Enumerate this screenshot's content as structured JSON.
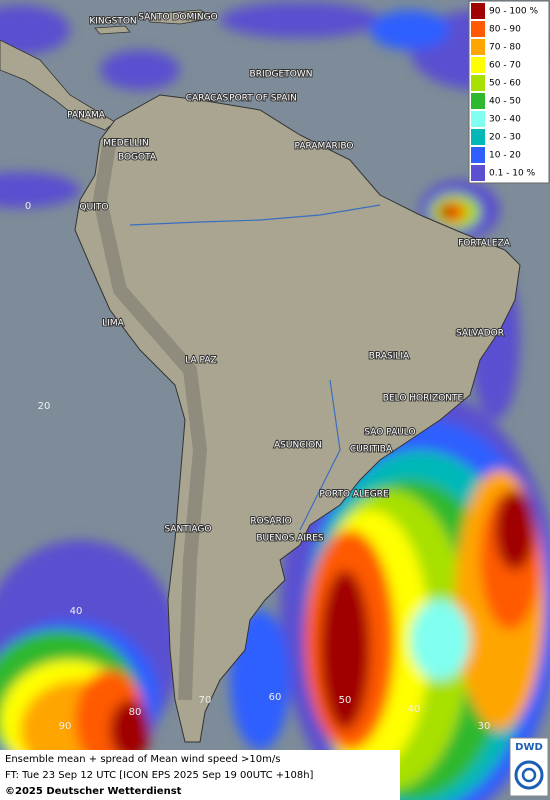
{
  "legend": [
    {
      "label": "90 - 100 %",
      "color": "#a00000"
    },
    {
      "label": "80 - 90",
      "color": "#ff5a00"
    },
    {
      "label": "70 - 80",
      "color": "#ffa500"
    },
    {
      "label": "60 - 70",
      "color": "#ffff00"
    },
    {
      "label": "50 - 60",
      "color": "#a8e000"
    },
    {
      "label": "40 - 50",
      "color": "#2fb82f"
    },
    {
      "label": "30 - 40",
      "color": "#80fff0"
    },
    {
      "label": "20 - 30",
      "color": "#00b8b8"
    },
    {
      "label": "10 - 20",
      "color": "#2f5fff"
    },
    {
      "label": "0.1 - 10 %",
      "color": "#5a50d0"
    }
  ],
  "cities": [
    "KINGSTON",
    "SANTO DOMINGO",
    "BRIDGETOWN",
    "CARACAS",
    "PORT OF SPAIN",
    "PANAMA",
    "MEDELLIN",
    "BOGOTA",
    "PARAMARIBO",
    "QUITO",
    "FORTALEZA",
    "LIMA",
    "SALVADOR",
    "LA PAZ",
    "BRASILIA",
    "BELO HORIZONTE",
    "SAO PAULO",
    "ASUNCION",
    "CURITIBA",
    "PORTO ALEGRE",
    "ROSARIO",
    "SANTIAGO",
    "BUENOS AIRES"
  ],
  "grid_labels": {
    "lat": [
      0,
      20,
      40
    ],
    "lon": [
      90,
      80,
      70,
      60,
      50,
      40,
      30
    ]
  },
  "footer": {
    "line1": "Ensemble mean + spread of Mean wind speed >10m/s",
    "line2": "FT: Tue 23 Sep 12 UTC [ICON EPS 2025 Sep 19 00UTC +108h]",
    "copyright": "©2025 Deutscher Wetterdienst"
  },
  "logo": "DWD"
}
